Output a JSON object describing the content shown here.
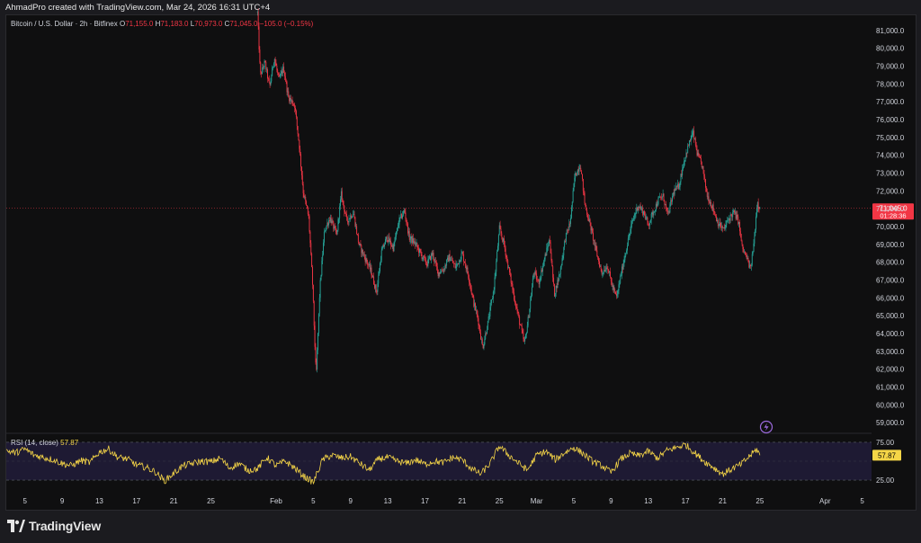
{
  "header": {
    "author_line": "AhmadPro created with TradingView.com, Mar 24, 2026 16:31 UTC+4"
  },
  "legend": {
    "symbol": "Bitcoin / U.S. Dollar · 2h · Bitfinex",
    "open_label": "O",
    "open": "71,155.0",
    "high_label": "H",
    "high": "71,183.0",
    "low_label": "L",
    "low": "70,973.0",
    "close_label": "C",
    "close": "71,045.0",
    "change": "−105.0 (−0.15%)"
  },
  "price_tag": {
    "value": "71,045.0",
    "countdown": "01:28:36"
  },
  "rsi": {
    "label": "RSI (14, close)",
    "value": "57.87",
    "levels": [
      "75.00",
      "25.00"
    ],
    "tag": "57.87"
  },
  "footer": {
    "brand": "TradingView"
  },
  "colors": {
    "up": "#26a69a",
    "down": "#f23645",
    "rsi_line": "#f5d547",
    "rsi_band": "#1e1a33",
    "bg": "#0f0f10",
    "text": "#d1d4dc"
  },
  "chart_data": [
    {
      "type": "candlestick",
      "y_ticks": [
        "81,000.0",
        "80,000.0",
        "79,000.0",
        "78,000.0",
        "77,000.0",
        "76,000.0",
        "75,000.0",
        "74,000.0",
        "73,000.0",
        "72,000.0",
        "71,000.0",
        "70,000.0",
        "69,000.0",
        "68,000.0",
        "67,000.0",
        "66,000.0",
        "65,000.0",
        "64,000.0",
        "63,000.0",
        "62,000.0",
        "61,000.0",
        "60,000.0",
        "59,000.0"
      ],
      "ylim": [
        58500,
        81800
      ],
      "x_ticks": [
        "5",
        "9",
        "13",
        "17",
        "21",
        "25",
        "Feb",
        "5",
        "9",
        "13",
        "17",
        "21",
        "25",
        "Mar",
        "5",
        "9",
        "13",
        "17",
        "21",
        "25",
        "Apr",
        "5"
      ],
      "x_tick_days": [
        5,
        9,
        13,
        17,
        21,
        25,
        32,
        36,
        40,
        44,
        48,
        52,
        56,
        60,
        64,
        68,
        72,
        76,
        80,
        84,
        91,
        95
      ],
      "x_range_days": [
        3,
        96
      ],
      "last_day": 84.0,
      "last_price": 71045,
      "path": [
        [
          30.0,
          82000
        ],
        [
          30.3,
          78500
        ],
        [
          30.8,
          79200
        ],
        [
          31.3,
          77800
        ],
        [
          31.8,
          79500
        ],
        [
          32.3,
          78200
        ],
        [
          32.8,
          78900
        ],
        [
          33.3,
          77300
        ],
        [
          34.0,
          76800
        ],
        [
          34.5,
          74500
        ],
        [
          34.9,
          72000
        ],
        [
          35.5,
          70500
        ],
        [
          35.9,
          67000
        ],
        [
          36.3,
          61500
        ],
        [
          36.7,
          66500
        ],
        [
          37.2,
          69800
        ],
        [
          37.8,
          70500
        ],
        [
          38.5,
          69500
        ],
        [
          39.0,
          71800
        ],
        [
          39.6,
          70300
        ],
        [
          40.3,
          70800
        ],
        [
          40.9,
          69000
        ],
        [
          41.5,
          68300
        ],
        [
          42.2,
          67500
        ],
        [
          42.8,
          66300
        ],
        [
          43.3,
          68500
        ],
        [
          43.9,
          69400
        ],
        [
          44.6,
          68800
        ],
        [
          45.2,
          70300
        ],
        [
          45.8,
          70900
        ],
        [
          46.3,
          69400
        ],
        [
          47.0,
          69000
        ],
        [
          47.6,
          68400
        ],
        [
          48.2,
          67900
        ],
        [
          48.8,
          68500
        ],
        [
          49.4,
          67400
        ],
        [
          50.0,
          67600
        ],
        [
          50.6,
          68300
        ],
        [
          51.3,
          67700
        ],
        [
          52.0,
          68500
        ],
        [
          52.7,
          67200
        ],
        [
          53.2,
          65800
        ],
        [
          53.7,
          64800
        ],
        [
          54.2,
          63200
        ],
        [
          54.8,
          64700
        ],
        [
          55.4,
          66500
        ],
        [
          56.0,
          69900
        ],
        [
          56.5,
          69000
        ],
        [
          57.0,
          67600
        ],
        [
          57.6,
          66000
        ],
        [
          58.1,
          64800
        ],
        [
          58.7,
          63400
        ],
        [
          59.2,
          65200
        ],
        [
          59.7,
          67500
        ],
        [
          60.2,
          66800
        ],
        [
          60.8,
          68100
        ],
        [
          61.4,
          69300
        ],
        [
          61.9,
          66200
        ],
        [
          62.5,
          67400
        ],
        [
          63.1,
          69400
        ],
        [
          63.6,
          70200
        ],
        [
          64.1,
          72800
        ],
        [
          64.7,
          73500
        ],
        [
          65.2,
          71200
        ],
        [
          65.8,
          70000
        ],
        [
          66.4,
          68600
        ],
        [
          67.0,
          67400
        ],
        [
          67.6,
          67800
        ],
        [
          68.1,
          66700
        ],
        [
          68.6,
          66000
        ],
        [
          69.1,
          67400
        ],
        [
          69.7,
          68900
        ],
        [
          70.3,
          70300
        ],
        [
          70.9,
          71200
        ],
        [
          71.5,
          70800
        ],
        [
          72.0,
          70100
        ],
        [
          72.6,
          70900
        ],
        [
          73.1,
          71500
        ],
        [
          73.6,
          71700
        ],
        [
          74.1,
          70600
        ],
        [
          74.7,
          71900
        ],
        [
          75.3,
          72300
        ],
        [
          75.8,
          73600
        ],
        [
          76.3,
          74500
        ],
        [
          76.8,
          75300
        ],
        [
          77.3,
          74000
        ],
        [
          77.8,
          73400
        ],
        [
          78.3,
          71800
        ],
        [
          78.9,
          71100
        ],
        [
          79.5,
          70200
        ],
        [
          80.1,
          69800
        ],
        [
          80.6,
          70400
        ],
        [
          81.2,
          70800
        ],
        [
          81.7,
          70300
        ],
        [
          82.1,
          68800
        ],
        [
          82.6,
          68200
        ],
        [
          83.0,
          67600
        ],
        [
          83.4,
          69300
        ],
        [
          83.7,
          71400
        ],
        [
          84.0,
          71045
        ]
      ]
    },
    {
      "type": "line",
      "y_ticks": [
        "75.00",
        "25.00"
      ],
      "ylim": [
        18,
        82
      ],
      "x_range_days": [
        3,
        96
      ],
      "path": [
        [
          3,
          64
        ],
        [
          4,
          61
        ],
        [
          5,
          66
        ],
        [
          6,
          58
        ],
        [
          7,
          55
        ],
        [
          8,
          52
        ],
        [
          9,
          47
        ],
        [
          10,
          44
        ],
        [
          11,
          51
        ],
        [
          12,
          48
        ],
        [
          13,
          62
        ],
        [
          14,
          66
        ],
        [
          15,
          55
        ],
        [
          16,
          53
        ],
        [
          17,
          45
        ],
        [
          18,
          42
        ],
        [
          19,
          36
        ],
        [
          20,
          24
        ],
        [
          21,
          34
        ],
        [
          22,
          44
        ],
        [
          23,
          47
        ],
        [
          24,
          50
        ],
        [
          25,
          49
        ],
        [
          26,
          54
        ],
        [
          27,
          41
        ],
        [
          28,
          47
        ],
        [
          29,
          38
        ],
        [
          30,
          40
        ],
        [
          31,
          55
        ],
        [
          32,
          44
        ],
        [
          33,
          50
        ],
        [
          34,
          41
        ],
        [
          35,
          30
        ],
        [
          36,
          22
        ],
        [
          37,
          52
        ],
        [
          38,
          58
        ],
        [
          39,
          54
        ],
        [
          40,
          56
        ],
        [
          41,
          47
        ],
        [
          42,
          38
        ],
        [
          43,
          53
        ],
        [
          44,
          55
        ],
        [
          45,
          50
        ],
        [
          46,
          47
        ],
        [
          47,
          52
        ],
        [
          48,
          46
        ],
        [
          49,
          50
        ],
        [
          50,
          48
        ],
        [
          51,
          55
        ],
        [
          52,
          52
        ],
        [
          53,
          40
        ],
        [
          54,
          33
        ],
        [
          55,
          47
        ],
        [
          56,
          70
        ],
        [
          57,
          58
        ],
        [
          58,
          48
        ],
        [
          59,
          38
        ],
        [
          60,
          58
        ],
        [
          61,
          63
        ],
        [
          62,
          52
        ],
        [
          63,
          61
        ],
        [
          64,
          68
        ],
        [
          65,
          60
        ],
        [
          66,
          50
        ],
        [
          67,
          44
        ],
        [
          68,
          35
        ],
        [
          69,
          52
        ],
        [
          70,
          60
        ],
        [
          71,
          57
        ],
        [
          72,
          63
        ],
        [
          73,
          54
        ],
        [
          74,
          64
        ],
        [
          75,
          68
        ],
        [
          76,
          72
        ],
        [
          77,
          61
        ],
        [
          78,
          50
        ],
        [
          79,
          42
        ],
        [
          80,
          33
        ],
        [
          81,
          40
        ],
        [
          82,
          46
        ],
        [
          83,
          58
        ],
        [
          83.7,
          66
        ],
        [
          84,
          57.87
        ]
      ]
    }
  ]
}
